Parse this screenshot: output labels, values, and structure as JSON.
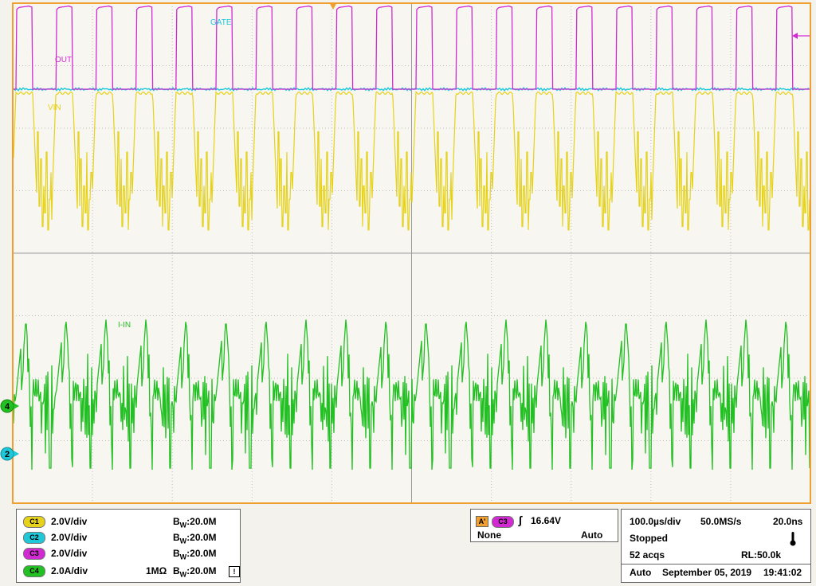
{
  "labels": {
    "gate": "GATE",
    "out": "OUT",
    "vin": "VIN",
    "iin": "I-IN"
  },
  "markers": {
    "ch4": "4",
    "ch2": "2"
  },
  "colors": {
    "grid_bg": "#f7f6f1",
    "grid_line": "#bcbcbc",
    "frame": "#f0a030",
    "c1": "#e6d21a",
    "c2": "#1ec8d8",
    "c3": "#d22ad2",
    "c4": "#22c022"
  },
  "channels": [
    {
      "id": "C1",
      "scale": "2.0V/div",
      "impedance": "",
      "bw": "20.0M"
    },
    {
      "id": "C2",
      "scale": "2.0V/div",
      "impedance": "",
      "bw": "20.0M"
    },
    {
      "id": "C3",
      "scale": "2.0V/div",
      "impedance": "",
      "bw": "20.0M"
    },
    {
      "id": "C4",
      "scale": "2.0A/div",
      "impedance": "1MΩ",
      "bw": "20.0M"
    }
  ],
  "bw_prefix": "B",
  "bw_sub": "W",
  "warning_glyph": "!",
  "trigger": {
    "mode_badge": "A'",
    "source": "C3",
    "edge_glyph": "∫",
    "level": "16.64V",
    "coupling": "None",
    "mode": "Auto"
  },
  "acquisition": {
    "timebase": "100.0µs/div",
    "sample_rate": "50.0MS/s",
    "resolution": "20.0ns",
    "state": "Stopped",
    "acqs": "52 acqs",
    "record_length": "RL:50.0k",
    "run_mode": "Auto",
    "date": "September 05, 2019",
    "time": "19:41:02"
  }
}
